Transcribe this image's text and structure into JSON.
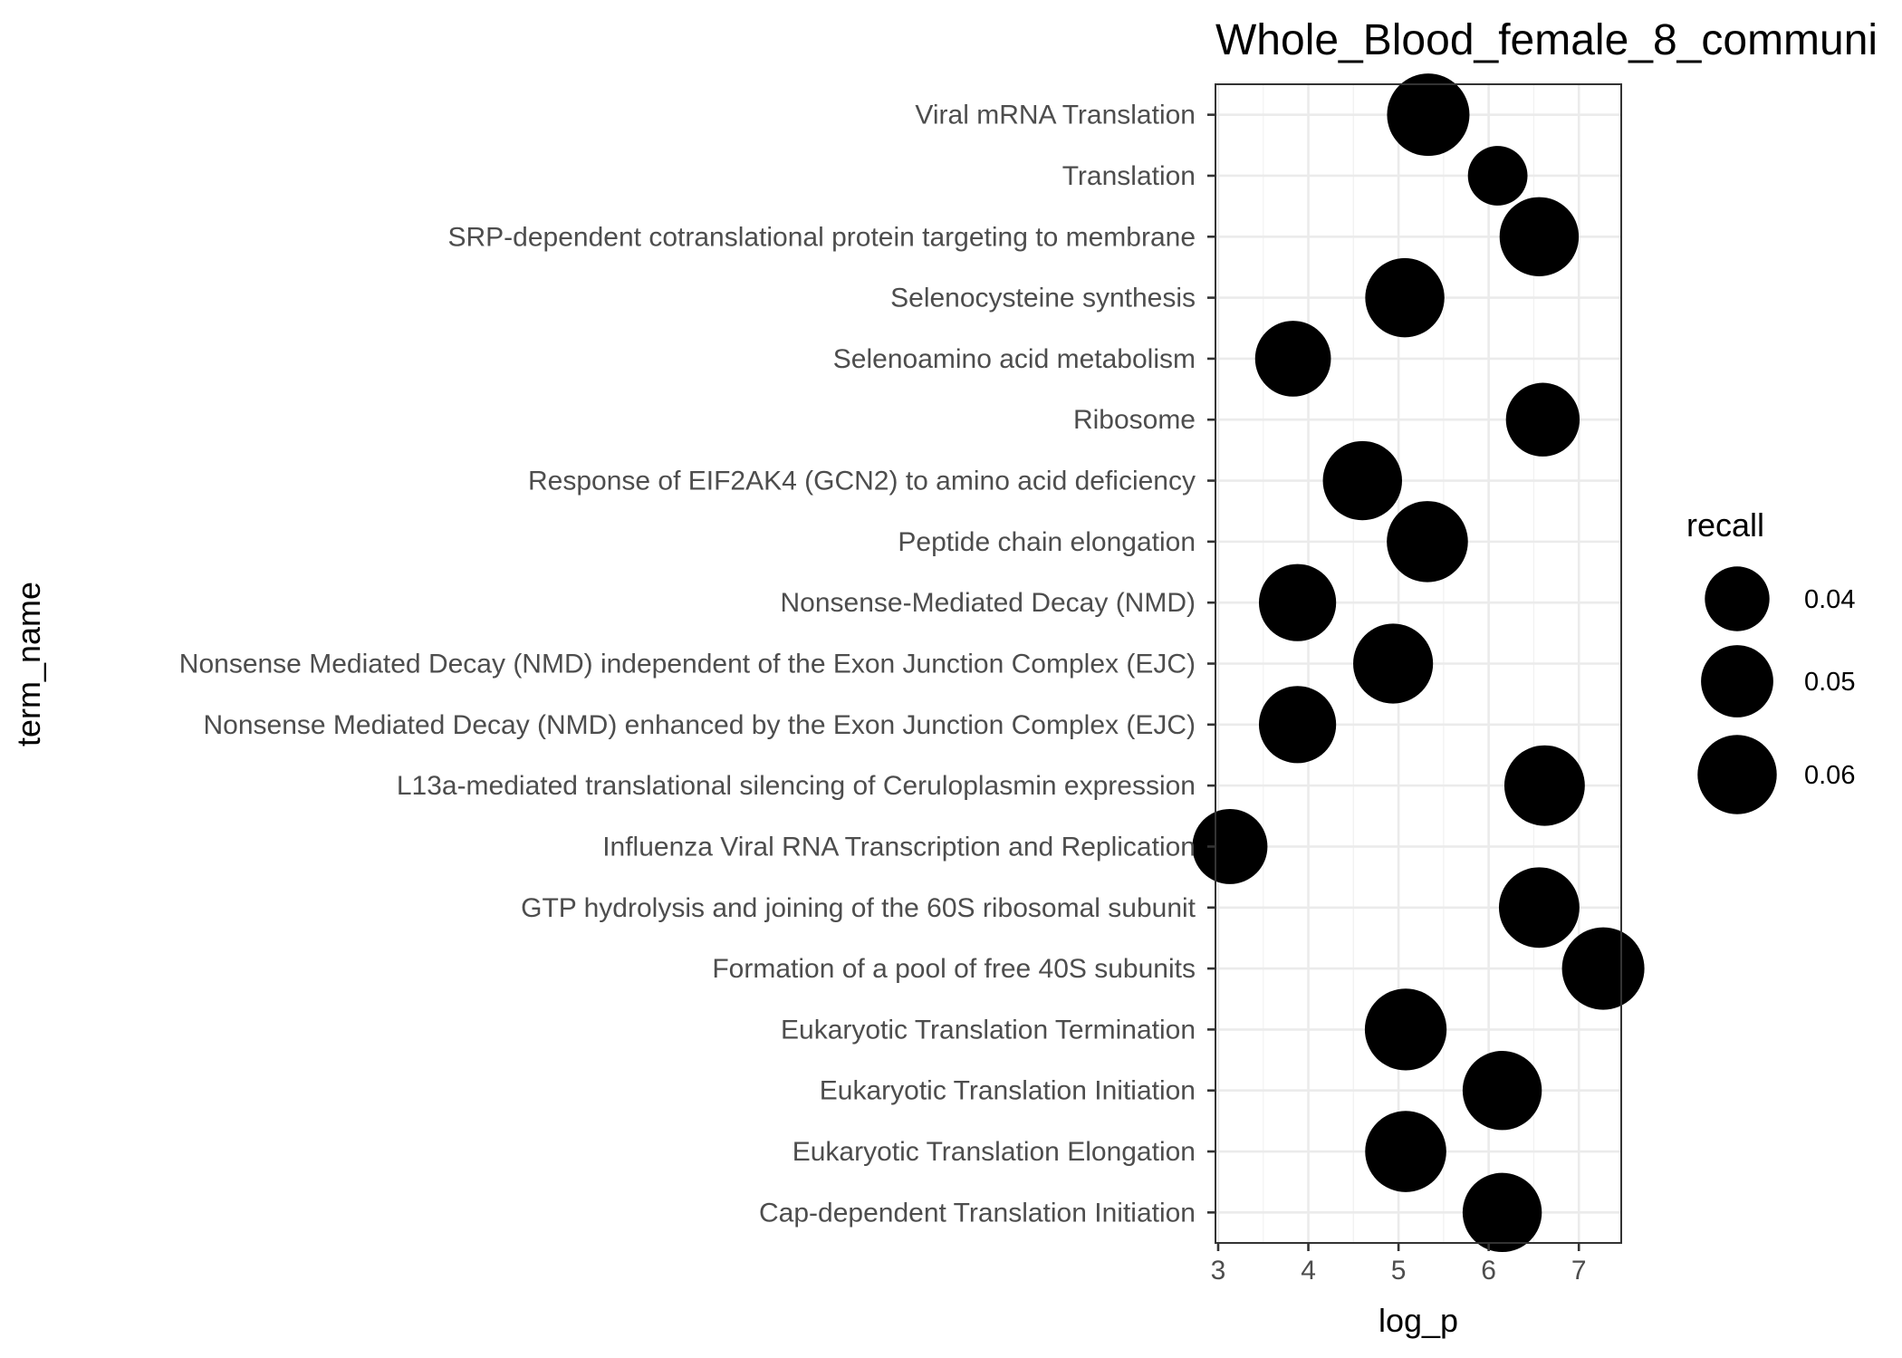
{
  "chart_data": {
    "type": "scatter",
    "title": "Whole_Blood_female_8_communi",
    "xlabel": "log_p",
    "ylabel": "term_name",
    "xlim": [
      2.97,
      7.47
    ],
    "x_ticks": [
      "3",
      "4",
      "5",
      "6",
      "7"
    ],
    "grid": true,
    "size_legend": {
      "title": "recall",
      "position": "right",
      "entries": [
        {
          "label": "0.04",
          "value": 0.04
        },
        {
          "label": "0.05",
          "value": 0.05
        },
        {
          "label": "0.06",
          "value": 0.06
        }
      ]
    },
    "points": [
      {
        "term": "Viral mRNA Translation",
        "log_p": 5.33,
        "recall": 0.065
      },
      {
        "term": "Translation",
        "log_p": 6.1,
        "recall": 0.034
      },
      {
        "term": "SRP-dependent cotranslational protein targeting to membrane",
        "log_p": 6.56,
        "recall": 0.06
      },
      {
        "term": "Selenocysteine synthesis",
        "log_p": 5.07,
        "recall": 0.06
      },
      {
        "term": "Selenoamino acid metabolism",
        "log_p": 3.83,
        "recall": 0.055
      },
      {
        "term": "Ribosome",
        "log_p": 6.6,
        "recall": 0.052
      },
      {
        "term": "Response of EIF2AK4 (GCN2) to amino acid deficiency",
        "log_p": 4.6,
        "recall": 0.06
      },
      {
        "term": "Peptide chain elongation",
        "log_p": 5.32,
        "recall": 0.063
      },
      {
        "term": "Nonsense-Mediated Decay (NMD)",
        "log_p": 3.88,
        "recall": 0.057
      },
      {
        "term": "Nonsense Mediated Decay (NMD) independent of the Exon Junction Complex (EJC)",
        "log_p": 4.94,
        "recall": 0.061
      },
      {
        "term": "Nonsense Mediated Decay (NMD) enhanced by the Exon Junction Complex (EJC)",
        "log_p": 3.88,
        "recall": 0.057
      },
      {
        "term": "L13a-mediated translational silencing of Ceruloplasmin expression",
        "log_p": 6.62,
        "recall": 0.062
      },
      {
        "term": "Influenza Viral RNA Transcription and Replication",
        "log_p": 3.13,
        "recall": 0.054
      },
      {
        "term": "GTP hydrolysis and joining of the 60S ribosomal subunit",
        "log_p": 6.56,
        "recall": 0.062
      },
      {
        "term": "Formation of a pool of free 40S subunits",
        "log_p": 7.27,
        "recall": 0.065
      },
      {
        "term": "Eukaryotic Translation Termination",
        "log_p": 5.08,
        "recall": 0.064
      },
      {
        "term": "Eukaryotic Translation Initiation",
        "log_p": 6.15,
        "recall": 0.06
      },
      {
        "term": "Eukaryotic Translation Elongation",
        "log_p": 5.08,
        "recall": 0.063
      },
      {
        "term": "Cap-dependent Translation Initiation",
        "log_p": 6.15,
        "recall": 0.06
      }
    ]
  }
}
